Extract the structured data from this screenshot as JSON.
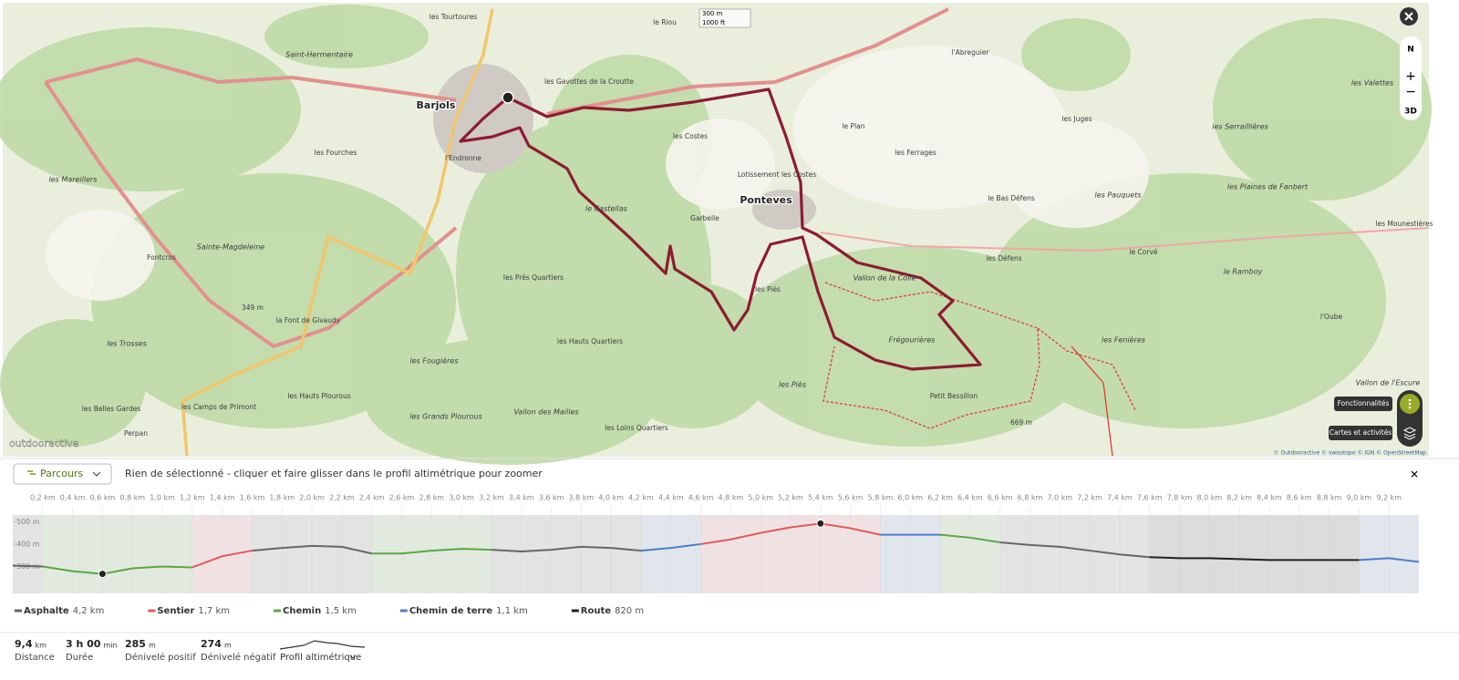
{
  "map": {
    "labels": [
      "Barjols",
      "Ponteves",
      "Saint-Hermentaire",
      "les Mareillers",
      "les Fourches",
      "l'Endronne",
      "Sainte-Magdeleine",
      "Fontcros",
      "349 m",
      "la Font de Givaudy",
      "les Trosses",
      "les Fougières",
      "les Hauts Plourous",
      "les Belles Gardes",
      "les Camps de Primont",
      "Perpan",
      "les Grands Plourous",
      "Vallon des Mailles",
      "les Loins Quartiers",
      "les Hauts Quartiers",
      "les Prés Quartiers",
      "le Castellas",
      "les Gavottes de la Croutte",
      "les Costes",
      "Lotissement les Costes",
      "Garbelle",
      "les Piès",
      "les Piès",
      "Vallon de la Colle",
      "Frégourières",
      "Petit Bessillon",
      "669 m",
      "le Plan",
      "les Ferrages",
      "l'Abreguier",
      "les Juges",
      "le Bas Défens",
      "les Pauquets",
      "les Défens",
      "le Corvé",
      "le Ramboy",
      "les Fenières",
      "les Plaines de Fanbert",
      "les Serraillières",
      "les Valettes",
      "les Mounestières",
      "l'Oube",
      "Vallon de l'Escure",
      "les Tourtoures",
      "le Riou"
    ],
    "scale": [
      "300 m",
      "1000 ft"
    ],
    "north": "N",
    "three_d": "3D",
    "tooltips": [
      "Fonctionnalités",
      "Cartes et activités"
    ],
    "brand": "outdooractive",
    "attribution": "© Outdooractive © swisstopo © IGN © OpenStreetMap"
  },
  "panel": {
    "dropdown": "Parcours",
    "hint": "Rien de sélectionné - cliquer et faire glisser dans le profil altimétrique pour zoomer"
  },
  "chart_data": {
    "type": "line",
    "x": [
      0,
      0.2,
      0.4,
      0.6,
      0.8,
      1.0,
      1.2,
      1.4,
      1.6,
      1.8,
      2.0,
      2.2,
      2.4,
      2.6,
      2.8,
      3.0,
      3.2,
      3.4,
      3.6,
      3.8,
      4.0,
      4.2,
      4.4,
      4.6,
      4.8,
      5.0,
      5.2,
      5.4,
      5.6,
      5.8,
      6.0,
      6.2,
      6.4,
      6.6,
      6.8,
      7.0,
      7.2,
      7.4,
      7.6,
      7.8,
      8.0,
      8.2,
      8.4,
      8.6,
      8.8,
      9.0,
      9.2,
      9.4
    ],
    "xlim": [
      0,
      9.4
    ],
    "xticks": [
      {
        "value": 0.2,
        "label": "0,2 km"
      },
      {
        "value": 0.4,
        "label": "0,4 km"
      },
      {
        "value": 0.6,
        "label": "0,6 km"
      },
      {
        "value": 0.8,
        "label": "0,8 km"
      },
      {
        "value": 1.0,
        "label": "1,0 km"
      },
      {
        "value": 1.2,
        "label": "1,2 km"
      },
      {
        "value": 1.4,
        "label": "1,4 km"
      },
      {
        "value": 1.6,
        "label": "1,6 km"
      },
      {
        "value": 1.8,
        "label": "1,8 km"
      },
      {
        "value": 2.0,
        "label": "2,0 km"
      },
      {
        "value": 2.2,
        "label": "2,2 km"
      },
      {
        "value": 2.4,
        "label": "2,4 km"
      },
      {
        "value": 2.6,
        "label": "2,6 km"
      },
      {
        "value": 2.8,
        "label": "2,8 km"
      },
      {
        "value": 3.0,
        "label": "3,0 km"
      },
      {
        "value": 3.2,
        "label": "3,2 km"
      },
      {
        "value": 3.4,
        "label": "3,4 km"
      },
      {
        "value": 3.6,
        "label": "3,6 km"
      },
      {
        "value": 3.8,
        "label": "3,8 km"
      },
      {
        "value": 4.0,
        "label": "4,0 km"
      },
      {
        "value": 4.2,
        "label": "4,2 km"
      },
      {
        "value": 4.4,
        "label": "4,4 km"
      },
      {
        "value": 4.6,
        "label": "4,6 km"
      },
      {
        "value": 4.8,
        "label": "4,8 km"
      },
      {
        "value": 5.0,
        "label": "5,0 km"
      },
      {
        "value": 5.2,
        "label": "5,2 km"
      },
      {
        "value": 5.4,
        "label": "5,4 km"
      },
      {
        "value": 5.6,
        "label": "5,6 km"
      },
      {
        "value": 5.8,
        "label": "5,8 km"
      },
      {
        "value": 6.0,
        "label": "6,0 km"
      },
      {
        "value": 6.2,
        "label": "6,2 km"
      },
      {
        "value": 6.4,
        "label": "6,4 km"
      },
      {
        "value": 6.6,
        "label": "6,6 km"
      },
      {
        "value": 6.8,
        "label": "6,8 km"
      },
      {
        "value": 7.0,
        "label": "7,0 km"
      },
      {
        "value": 7.2,
        "label": "7,2 km"
      },
      {
        "value": 7.4,
        "label": "7,4 km"
      },
      {
        "value": 7.6,
        "label": "7,6 km"
      },
      {
        "value": 7.8,
        "label": "7,8 km"
      },
      {
        "value": 8.0,
        "label": "8,0 km"
      },
      {
        "value": 8.2,
        "label": "8,2 km"
      },
      {
        "value": 8.4,
        "label": "8,4 km"
      },
      {
        "value": 8.6,
        "label": "8,6 km"
      },
      {
        "value": 8.8,
        "label": "8,8 km"
      },
      {
        "value": 9.0,
        "label": "9,0 km"
      },
      {
        "value": 9.2,
        "label": "9,2 km"
      }
    ],
    "ylim": [
      180,
      530
    ],
    "yticks": [
      {
        "value": 500,
        "label": "500 m"
      },
      {
        "value": 400,
        "label": "400 m"
      },
      {
        "value": 300,
        "label": "300 m"
      }
    ],
    "series": [
      {
        "name": "Asphalte",
        "length": "4,2 km",
        "color": "#666666",
        "values": [
          304,
          300,
          null,
          null,
          null,
          null,
          null,
          null,
          371,
          383,
          392,
          388,
          358,
          null,
          null,
          null,
          375,
          367,
          375,
          388,
          383,
          371,
          null,
          null,
          null,
          null,
          null,
          null,
          null,
          null,
          null,
          null,
          null,
          408,
          396,
          388,
          371,
          354,
          342,
          null,
          null,
          null,
          null,
          null,
          null,
          null,
          null,
          null
        ]
      },
      {
        "name": "Sentier",
        "length": "1,7 km",
        "color": "#e45a5a",
        "values": [
          null,
          null,
          null,
          null,
          null,
          null,
          296,
          346,
          371,
          null,
          null,
          null,
          null,
          null,
          null,
          null,
          null,
          null,
          null,
          null,
          null,
          null,
          null,
          400,
          421,
          450,
          475,
          492,
          471,
          442,
          null,
          null,
          null,
          null,
          null,
          null,
          null,
          null,
          null,
          null,
          null,
          null,
          null,
          null,
          null,
          null,
          null,
          null
        ]
      },
      {
        "name": "Chemin",
        "length": "1,5 km",
        "color": "#5aa844",
        "values": [
          null,
          300,
          279,
          267,
          292,
          300,
          296,
          null,
          null,
          null,
          null,
          null,
          358,
          358,
          371,
          379,
          375,
          null,
          null,
          null,
          null,
          null,
          null,
          null,
          null,
          null,
          null,
          null,
          null,
          null,
          null,
          442,
          429,
          408,
          null,
          null,
          null,
          null,
          null,
          null,
          null,
          null,
          null,
          null,
          null,
          null,
          null,
          null
        ]
      },
      {
        "name": "Chemin de terre",
        "length": "1,1 km",
        "color": "#4a7fc9",
        "values": [
          null,
          null,
          null,
          null,
          null,
          null,
          null,
          null,
          null,
          null,
          null,
          null,
          null,
          null,
          null,
          null,
          null,
          null,
          null,
          null,
          null,
          371,
          383,
          400,
          null,
          null,
          null,
          null,
          null,
          442,
          442,
          442,
          null,
          null,
          null,
          null,
          null,
          null,
          null,
          null,
          null,
          null,
          null,
          null,
          null,
          329,
          337,
          321
        ]
      },
      {
        "name": "Route",
        "length": "820 m",
        "color": "#222222",
        "values": [
          null,
          null,
          null,
          null,
          null,
          null,
          null,
          null,
          null,
          null,
          null,
          null,
          null,
          null,
          null,
          null,
          null,
          null,
          null,
          null,
          null,
          null,
          null,
          null,
          null,
          null,
          null,
          null,
          null,
          null,
          null,
          null,
          null,
          null,
          null,
          null,
          null,
          null,
          342,
          337,
          337,
          333,
          329,
          329,
          329,
          329,
          null,
          null
        ]
      }
    ]
  },
  "stats": [
    {
      "value": "9,4",
      "unit": "km",
      "label": "Distance"
    },
    {
      "value": "3 h 00",
      "unit": "min",
      "label": "Durée"
    },
    {
      "value": "285",
      "unit": "m",
      "label": "Dénivelé positif"
    },
    {
      "value": "274",
      "unit": "m",
      "label": "Dénivelé négatif"
    }
  ],
  "profile_button": "Profil altimétrique"
}
